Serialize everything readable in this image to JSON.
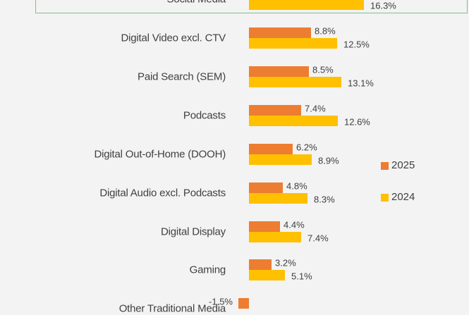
{
  "chart_data": {
    "type": "bar",
    "orientation": "horizontal",
    "unit": "%",
    "categories": [
      "Social Media",
      "Digital Video excl. CTV",
      "Paid Search (SEM)",
      "Podcasts",
      "Digital Out-of-Home (DOOH)",
      "Digital Audio excl. Podcasts",
      "Digital Display",
      "Gaming",
      "Other Traditional Media"
    ],
    "series": [
      {
        "name": "2025",
        "color": "#ed7d31",
        "values": [
          null,
          8.8,
          8.5,
          7.4,
          6.2,
          4.8,
          4.4,
          3.2,
          -1.5
        ]
      },
      {
        "name": "2024",
        "color": "#ffc000",
        "values": [
          16.3,
          12.5,
          13.1,
          12.6,
          8.9,
          8.3,
          7.4,
          5.1,
          null
        ]
      }
    ],
    "labels_2025": [
      "",
      "8.8%",
      "8.5%",
      "7.4%",
      "6.2%",
      "4.8%",
      "4.4%",
      "3.2%",
      "-1.5%"
    ],
    "labels_2024": [
      "16.3%",
      "12.5%",
      "13.1%",
      "12.6%",
      "8.9%",
      "8.3%",
      "7.4%",
      "5.1%",
      ""
    ],
    "highlighted_category": "Social Media",
    "legend": {
      "items": [
        "2025",
        "2024"
      ],
      "position": "right"
    }
  }
}
